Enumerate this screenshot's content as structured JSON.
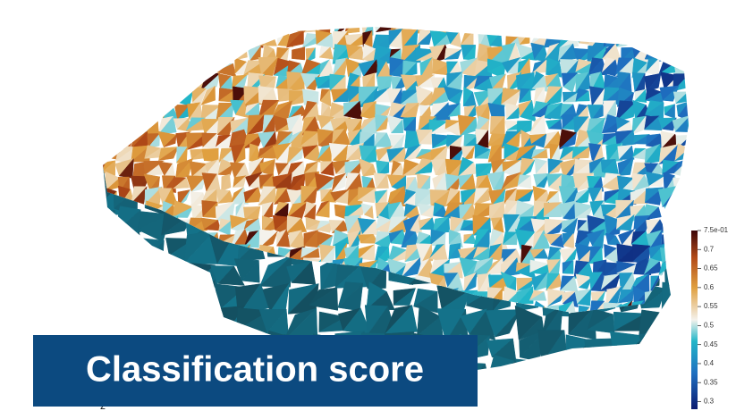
{
  "title_badge": "Classification score",
  "axis_label": "z",
  "colorbar": {
    "range": [
      0.28,
      0.75
    ],
    "ticks": [
      {
        "value": 0.75,
        "label": "7.5e-01"
      },
      0.7,
      0.65,
      0.6,
      0.55,
      0.5,
      0.45,
      0.4,
      0.35,
      0.3
    ]
  }
}
